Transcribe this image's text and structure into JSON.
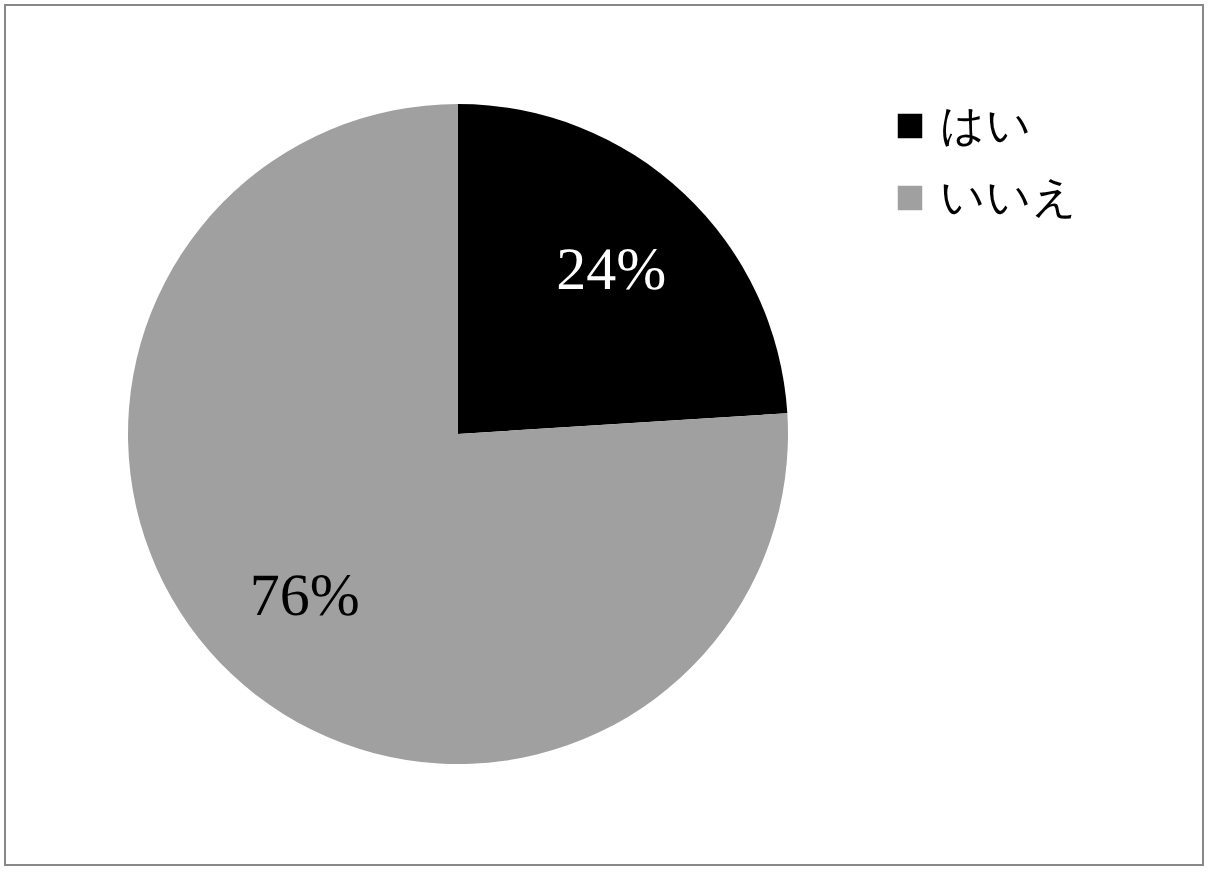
{
  "chart_data": {
    "type": "pie",
    "categories": [
      "はい",
      "いいえ"
    ],
    "values": [
      24,
      76
    ],
    "colors": [
      "#000000",
      "#a0a0a0"
    ],
    "value_labels": [
      "24%",
      "76%"
    ],
    "legend": "right"
  }
}
